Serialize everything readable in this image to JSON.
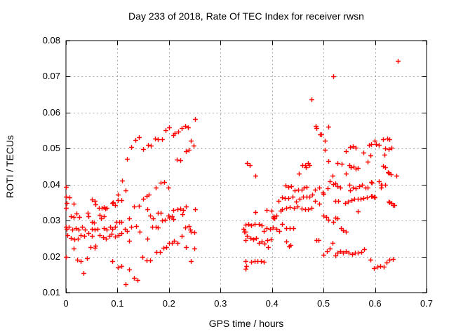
{
  "chart_data": {
    "type": "scatter",
    "title": "Day 233 of 2018, Rate Of TEC Index for receiver rwsn",
    "xlabel": "GPS time / hours",
    "ylabel": "ROTI / TECUs",
    "xlim": [
      0,
      0.7
    ],
    "ylim": [
      0.01,
      0.08
    ],
    "x_ticks": [
      0,
      0.1,
      0.2,
      0.3,
      0.4,
      0.5,
      0.6,
      0.7
    ],
    "x_tick_labels": [
      "0",
      "0.1",
      "0.2",
      "0.3",
      "0.4",
      "0.5",
      "0.6",
      "0.7"
    ],
    "y_ticks": [
      0.01,
      0.02,
      0.03,
      0.04,
      0.05,
      0.06,
      0.07,
      0.08
    ],
    "y_tick_labels": [
      "0.01",
      "0.02",
      "0.03",
      "0.04",
      "0.05",
      "0.06",
      "0.07",
      "0.08"
    ],
    "grid": true,
    "legend": "none",
    "marker": "plus",
    "colors": {
      "marker": "#ff0000",
      "grid": "#a8a8a8",
      "axis": "#000000",
      "text": "#000000"
    },
    "points": [
      [
        0.0,
        0.0393
      ],
      [
        0.0,
        0.0367
      ],
      [
        0.007,
        0.0365
      ],
      [
        0.015,
        0.0347
      ],
      [
        0.0,
        0.0336
      ],
      [
        0.002,
        0.0348
      ],
      [
        0.009,
        0.0312
      ],
      [
        0.015,
        0.031
      ],
      [
        0.021,
        0.0319
      ],
      [
        0.026,
        0.031
      ],
      [
        0.0,
        0.0282
      ],
      [
        0.002,
        0.0277
      ],
      [
        0.005,
        0.0283
      ],
      [
        0.012,
        0.0275
      ],
      [
        0.019,
        0.0278
      ],
      [
        0.025,
        0.0275
      ],
      [
        0.031,
        0.0282
      ],
      [
        0.037,
        0.0275
      ],
      [
        0.003,
        0.0259
      ],
      [
        0.01,
        0.0251
      ],
      [
        0.016,
        0.0247
      ],
      [
        0.023,
        0.0249
      ],
      [
        0.029,
        0.026
      ],
      [
        0.035,
        0.0258
      ],
      [
        0.015,
        0.0222
      ],
      [
        0.022,
        0.0191
      ],
      [
        0.028,
        0.0187
      ],
      [
        0.041,
        0.0195
      ],
      [
        0.034,
        0.0154
      ],
      [
        0.0,
        0.02
      ],
      [
        0.042,
        0.0321
      ],
      [
        0.043,
        0.0312
      ],
      [
        0.05,
        0.0358
      ],
      [
        0.056,
        0.0354
      ],
      [
        0.057,
        0.0345
      ],
      [
        0.05,
        0.0297
      ],
      [
        0.055,
        0.0295
      ],
      [
        0.043,
        0.0266
      ],
      [
        0.05,
        0.0277
      ],
      [
        0.056,
        0.0275
      ],
      [
        0.061,
        0.0276
      ],
      [
        0.05,
        0.0258
      ],
      [
        0.048,
        0.0227
      ],
      [
        0.056,
        0.0224
      ],
      [
        0.057,
        0.0231
      ],
      [
        0.064,
        0.0336
      ],
      [
        0.066,
        0.0316
      ],
      [
        0.068,
        0.0307
      ],
      [
        0.073,
        0.0338
      ],
      [
        0.074,
        0.0312
      ],
      [
        0.079,
        0.0336
      ],
      [
        0.069,
        0.0335
      ],
      [
        0.076,
        0.0333
      ],
      [
        0.073,
        0.0279
      ],
      [
        0.079,
        0.0275
      ],
      [
        0.066,
        0.026
      ],
      [
        0.072,
        0.0253
      ],
      [
        0.077,
        0.0249
      ],
      [
        0.084,
        0.0258
      ],
      [
        0.086,
        0.0283
      ],
      [
        0.089,
        0.0264
      ],
      [
        0.09,
        0.0277
      ],
      [
        0.09,
        0.0349
      ],
      [
        0.091,
        0.035
      ],
      [
        0.095,
        0.0343
      ],
      [
        0.095,
        0.0256
      ],
      [
        0.096,
        0.0282
      ],
      [
        0.098,
        0.0296
      ],
      [
        0.101,
        0.0373
      ],
      [
        0.101,
        0.0356
      ],
      [
        0.102,
        0.026
      ],
      [
        0.104,
        0.0296
      ],
      [
        0.107,
        0.0297
      ],
      [
        0.107,
        0.0356
      ],
      [
        0.108,
        0.0265
      ],
      [
        0.109,
        0.0412
      ],
      [
        0.116,
        0.0384
      ],
      [
        0.09,
        0.0187
      ],
      [
        0.101,
        0.017
      ],
      [
        0.108,
        0.0174
      ],
      [
        0.116,
        0.0124
      ],
      [
        0.123,
        0.0165
      ],
      [
        0.132,
        0.014
      ],
      [
        0.139,
        0.0135
      ],
      [
        0.114,
        0.0277
      ],
      [
        0.119,
        0.0272
      ],
      [
        0.122,
        0.0306
      ],
      [
        0.122,
        0.0244
      ],
      [
        0.127,
        0.0282
      ],
      [
        0.132,
        0.0339
      ],
      [
        0.136,
        0.0285
      ],
      [
        0.141,
        0.0342
      ],
      [
        0.143,
        0.027
      ],
      [
        0.148,
        0.0199
      ],
      [
        0.15,
        0.036
      ],
      [
        0.157,
        0.0369
      ],
      [
        0.161,
        0.0372
      ],
      [
        0.157,
        0.0189
      ],
      [
        0.163,
        0.0189
      ],
      [
        0.158,
        0.0331
      ],
      [
        0.158,
        0.025
      ],
      [
        0.163,
        0.0313
      ],
      [
        0.167,
        0.0282
      ],
      [
        0.169,
        0.0306
      ],
      [
        0.119,
        0.0472
      ],
      [
        0.127,
        0.0505
      ],
      [
        0.135,
        0.0523
      ],
      [
        0.142,
        0.0531
      ],
      [
        0.15,
        0.0499
      ],
      [
        0.159,
        0.0511
      ],
      [
        0.165,
        0.0509
      ],
      [
        0.173,
        0.0527
      ],
      [
        0.178,
        0.0526
      ],
      [
        0.186,
        0.0525
      ],
      [
        0.193,
        0.0552
      ],
      [
        0.2,
        0.0559
      ],
      [
        0.209,
        0.0538
      ],
      [
        0.211,
        0.0544
      ],
      [
        0.218,
        0.0548
      ],
      [
        0.225,
        0.0557
      ],
      [
        0.231,
        0.0562
      ],
      [
        0.237,
        0.0559
      ],
      [
        0.251,
        0.0582
      ],
      [
        0.243,
        0.0522
      ],
      [
        0.248,
        0.0509
      ],
      [
        0.233,
        0.0492
      ],
      [
        0.239,
        0.0496
      ],
      [
        0.215,
        0.047
      ],
      [
        0.222,
        0.0467
      ],
      [
        0.174,
        0.0391
      ],
      [
        0.184,
        0.0406
      ],
      [
        0.191,
        0.0407
      ],
      [
        0.199,
        0.0392
      ],
      [
        0.174,
        0.0283
      ],
      [
        0.176,
        0.0213
      ],
      [
        0.178,
        0.0321
      ],
      [
        0.178,
        0.0281
      ],
      [
        0.182,
        0.0212
      ],
      [
        0.184,
        0.0321
      ],
      [
        0.187,
        0.03
      ],
      [
        0.189,
        0.0224
      ],
      [
        0.192,
        0.0303
      ],
      [
        0.195,
        0.0227
      ],
      [
        0.199,
        0.0313
      ],
      [
        0.2,
        0.0309
      ],
      [
        0.2,
        0.0238
      ],
      [
        0.205,
        0.0311
      ],
      [
        0.205,
        0.0239
      ],
      [
        0.208,
        0.0305
      ],
      [
        0.209,
        0.0329
      ],
      [
        0.21,
        0.0243
      ],
      [
        0.216,
        0.0331
      ],
      [
        0.217,
        0.0238
      ],
      [
        0.222,
        0.0333
      ],
      [
        0.225,
        0.0258
      ],
      [
        0.226,
        0.0318
      ],
      [
        0.227,
        0.0329
      ],
      [
        0.232,
        0.0281
      ],
      [
        0.233,
        0.0339
      ],
      [
        0.233,
        0.0226
      ],
      [
        0.238,
        0.0284
      ],
      [
        0.241,
        0.0275
      ],
      [
        0.243,
        0.0269
      ],
      [
        0.242,
        0.0188
      ],
      [
        0.249,
        0.0267
      ],
      [
        0.249,
        0.0222
      ],
      [
        0.25,
        0.0331
      ],
      [
        0.345,
        0.0277
      ],
      [
        0.346,
        0.027
      ],
      [
        0.348,
        0.0187
      ],
      [
        0.349,
        0.0166
      ],
      [
        0.349,
        0.0288
      ],
      [
        0.349,
        0.0269
      ],
      [
        0.349,
        0.0245
      ],
      [
        0.35,
        0.0173
      ],
      [
        0.351,
        0.0459
      ],
      [
        0.352,
        0.0257
      ],
      [
        0.354,
        0.0291
      ],
      [
        0.357,
        0.0454
      ],
      [
        0.358,
        0.0251
      ],
      [
        0.36,
        0.0286
      ],
      [
        0.36,
        0.0185
      ],
      [
        0.363,
        0.0247
      ],
      [
        0.366,
        0.0187
      ],
      [
        0.367,
        0.0291
      ],
      [
        0.368,
        0.0425
      ],
      [
        0.368,
        0.0323
      ],
      [
        0.369,
        0.0251
      ],
      [
        0.372,
        0.0188
      ],
      [
        0.374,
        0.0291
      ],
      [
        0.375,
        0.0238
      ],
      [
        0.378,
        0.0188
      ],
      [
        0.38,
        0.0286
      ],
      [
        0.38,
        0.0242
      ],
      [
        0.384,
        0.0271
      ],
      [
        0.384,
        0.0186
      ],
      [
        0.386,
        0.0236
      ],
      [
        0.39,
        0.0329
      ],
      [
        0.39,
        0.0279
      ],
      [
        0.391,
        0.0245
      ],
      [
        0.392,
        0.0227
      ],
      [
        0.396,
        0.0277
      ],
      [
        0.397,
        0.0247
      ],
      [
        0.399,
        0.0327
      ],
      [
        0.402,
        0.0308
      ],
      [
        0.402,
        0.0281
      ],
      [
        0.403,
        0.0312
      ],
      [
        0.405,
        0.0306
      ],
      [
        0.408,
        0.0277
      ],
      [
        0.409,
        0.0314
      ],
      [
        0.413,
        0.0355
      ],
      [
        0.414,
        0.0271
      ],
      [
        0.417,
        0.0327
      ],
      [
        0.42,
        0.0365
      ],
      [
        0.42,
        0.0331
      ],
      [
        0.42,
        0.0291
      ],
      [
        0.425,
        0.0363
      ],
      [
        0.426,
        0.0398
      ],
      [
        0.427,
        0.0242
      ],
      [
        0.428,
        0.0336
      ],
      [
        0.428,
        0.0279
      ],
      [
        0.432,
        0.0393
      ],
      [
        0.432,
        0.0363
      ],
      [
        0.433,
        0.0229
      ],
      [
        0.434,
        0.0279
      ],
      [
        0.435,
        0.0338
      ],
      [
        0.436,
        0.0233
      ],
      [
        0.437,
        0.0395
      ],
      [
        0.44,
        0.0367
      ],
      [
        0.441,
        0.0279
      ],
      [
        0.442,
        0.0336
      ],
      [
        0.444,
        0.0384
      ],
      [
        0.447,
        0.0352
      ],
      [
        0.45,
        0.034
      ],
      [
        0.451,
        0.0385
      ],
      [
        0.452,
        0.0431
      ],
      [
        0.453,
        0.0361
      ],
      [
        0.457,
        0.0386
      ],
      [
        0.457,
        0.0333
      ],
      [
        0.459,
        0.0453
      ],
      [
        0.46,
        0.0366
      ],
      [
        0.462,
        0.0391
      ],
      [
        0.464,
        0.0331
      ],
      [
        0.465,
        0.0454
      ],
      [
        0.466,
        0.0449
      ],
      [
        0.467,
        0.0393
      ],
      [
        0.467,
        0.0366
      ],
      [
        0.47,
        0.0459
      ],
      [
        0.47,
        0.0331
      ],
      [
        0.472,
        0.0453
      ],
      [
        0.472,
        0.0367
      ],
      [
        0.476,
        0.0636
      ],
      [
        0.477,
        0.0336
      ],
      [
        0.478,
        0.0372
      ],
      [
        0.483,
        0.0385
      ],
      [
        0.484,
        0.0355
      ],
      [
        0.485,
        0.0562
      ],
      [
        0.486,
        0.0556
      ],
      [
        0.486,
        0.0246
      ],
      [
        0.49,
        0.0245
      ],
      [
        0.491,
        0.0392
      ],
      [
        0.491,
        0.0346
      ],
      [
        0.493,
        0.054
      ],
      [
        0.496,
        0.0539
      ],
      [
        0.498,
        0.0378
      ],
      [
        0.5,
        0.0374
      ],
      [
        0.5,
        0.0314
      ],
      [
        0.5,
        0.0205
      ],
      [
        0.502,
        0.0522
      ],
      [
        0.502,
        0.0496
      ],
      [
        0.505,
        0.031
      ],
      [
        0.507,
        0.0214
      ],
      [
        0.508,
        0.0389
      ],
      [
        0.51,
        0.056
      ],
      [
        0.51,
        0.0466
      ],
      [
        0.51,
        0.0302
      ],
      [
        0.512,
        0.0409
      ],
      [
        0.512,
        0.0222
      ],
      [
        0.517,
        0.0238
      ],
      [
        0.518,
        0.0424
      ],
      [
        0.519,
        0.07
      ],
      [
        0.519,
        0.0402
      ],
      [
        0.519,
        0.0297
      ],
      [
        0.523,
        0.0404
      ],
      [
        0.523,
        0.0355
      ],
      [
        0.523,
        0.0308
      ],
      [
        0.523,
        0.0204
      ],
      [
        0.527,
        0.0459
      ],
      [
        0.527,
        0.0395
      ],
      [
        0.527,
        0.0306
      ],
      [
        0.527,
        0.021
      ],
      [
        0.528,
        0.0354
      ],
      [
        0.532,
        0.0214
      ],
      [
        0.533,
        0.0391
      ],
      [
        0.534,
        0.0278
      ],
      [
        0.535,
        0.0458
      ],
      [
        0.538,
        0.0273
      ],
      [
        0.538,
        0.021
      ],
      [
        0.542,
        0.0349
      ],
      [
        0.543,
        0.0492
      ],
      [
        0.544,
        0.043
      ],
      [
        0.544,
        0.0269
      ],
      [
        0.544,
        0.0214
      ],
      [
        0.548,
        0.0352
      ],
      [
        0.549,
        0.021
      ],
      [
        0.55,
        0.0453
      ],
      [
        0.55,
        0.0399
      ],
      [
        0.551,
        0.0505
      ],
      [
        0.552,
        0.0384
      ],
      [
        0.553,
        0.0449
      ],
      [
        0.554,
        0.0357
      ],
      [
        0.555,
        0.0207
      ],
      [
        0.557,
        0.0507
      ],
      [
        0.557,
        0.0392
      ],
      [
        0.559,
        0.045
      ],
      [
        0.56,
        0.036
      ],
      [
        0.561,
        0.021
      ],
      [
        0.562,
        0.0503
      ],
      [
        0.562,
        0.0444
      ],
      [
        0.563,
        0.0389
      ],
      [
        0.566,
        0.0447
      ],
      [
        0.566,
        0.0361
      ],
      [
        0.567,
        0.0325
      ],
      [
        0.567,
        0.021
      ],
      [
        0.569,
        0.0395
      ],
      [
        0.572,
        0.0361
      ],
      [
        0.573,
        0.0212
      ],
      [
        0.575,
        0.04
      ],
      [
        0.577,
        0.0488
      ],
      [
        0.578,
        0.0363
      ],
      [
        0.579,
        0.022
      ],
      [
        0.581,
        0.0392
      ],
      [
        0.584,
        0.0365
      ],
      [
        0.585,
        0.0464
      ],
      [
        0.586,
        0.0392
      ],
      [
        0.589,
        0.051
      ],
      [
        0.591,
        0.0482
      ],
      [
        0.591,
        0.0191
      ],
      [
        0.592,
        0.0408
      ],
      [
        0.592,
        0.0369
      ],
      [
        0.593,
        0.0513
      ],
      [
        0.594,
        0.0406
      ],
      [
        0.594,
        0.0368
      ],
      [
        0.598,
        0.0367
      ],
      [
        0.598,
        0.0169
      ],
      [
        0.599,
        0.0522
      ],
      [
        0.599,
        0.0365
      ],
      [
        0.602,
        0.0512
      ],
      [
        0.604,
        0.0172
      ],
      [
        0.607,
        0.0511
      ],
      [
        0.607,
        0.0409
      ],
      [
        0.61,
        0.0174
      ],
      [
        0.611,
        0.04
      ],
      [
        0.611,
        0.0392
      ],
      [
        0.613,
        0.04
      ],
      [
        0.616,
        0.0525
      ],
      [
        0.616,
        0.0452
      ],
      [
        0.617,
        0.0172
      ],
      [
        0.618,
        0.0484
      ],
      [
        0.619,
        0.04
      ],
      [
        0.62,
        0.0501
      ],
      [
        0.62,
        0.0448
      ],
      [
        0.622,
        0.0184
      ],
      [
        0.624,
        0.0528
      ],
      [
        0.625,
        0.0435
      ],
      [
        0.626,
        0.0499
      ],
      [
        0.626,
        0.0433
      ],
      [
        0.626,
        0.0352
      ],
      [
        0.628,
        0.0526
      ],
      [
        0.628,
        0.0351
      ],
      [
        0.628,
        0.0191
      ],
      [
        0.631,
        0.0428
      ],
      [
        0.632,
        0.0502
      ],
      [
        0.632,
        0.0349
      ],
      [
        0.634,
        0.0344
      ],
      [
        0.634,
        0.0193
      ],
      [
        0.638,
        0.0344
      ],
      [
        0.641,
        0.0425
      ],
      [
        0.644,
        0.0743
      ]
    ]
  }
}
